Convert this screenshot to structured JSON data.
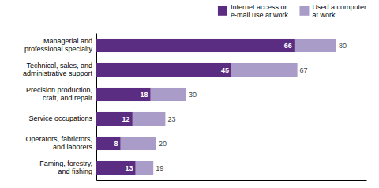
{
  "chart_data": {
    "type": "bar",
    "orientation": "horizontal",
    "stacked": false,
    "categories": [
      "Faming, forestry,\nand fishing",
      "Operators, fabrictors,\nand laborers",
      "Service occupations",
      "Precision production,\ncraft, and repair",
      "Technical, sales, and\nadministrative support",
      "Managerial and\nprofessional specialty"
    ],
    "series": [
      {
        "name": "Internet access or\ne-mail use at work",
        "color": "#5b2d82",
        "values": [
          13,
          8,
          12,
          18,
          45,
          66
        ]
      },
      {
        "name": "Used a computer\nat work",
        "color": "#a99cc8",
        "values": [
          19,
          20,
          23,
          30,
          67,
          80
        ]
      }
    ],
    "xlim": [
      0,
      90
    ],
    "data_labels": true,
    "tick_labels": "y",
    "grid": false,
    "legend": "upper right"
  }
}
